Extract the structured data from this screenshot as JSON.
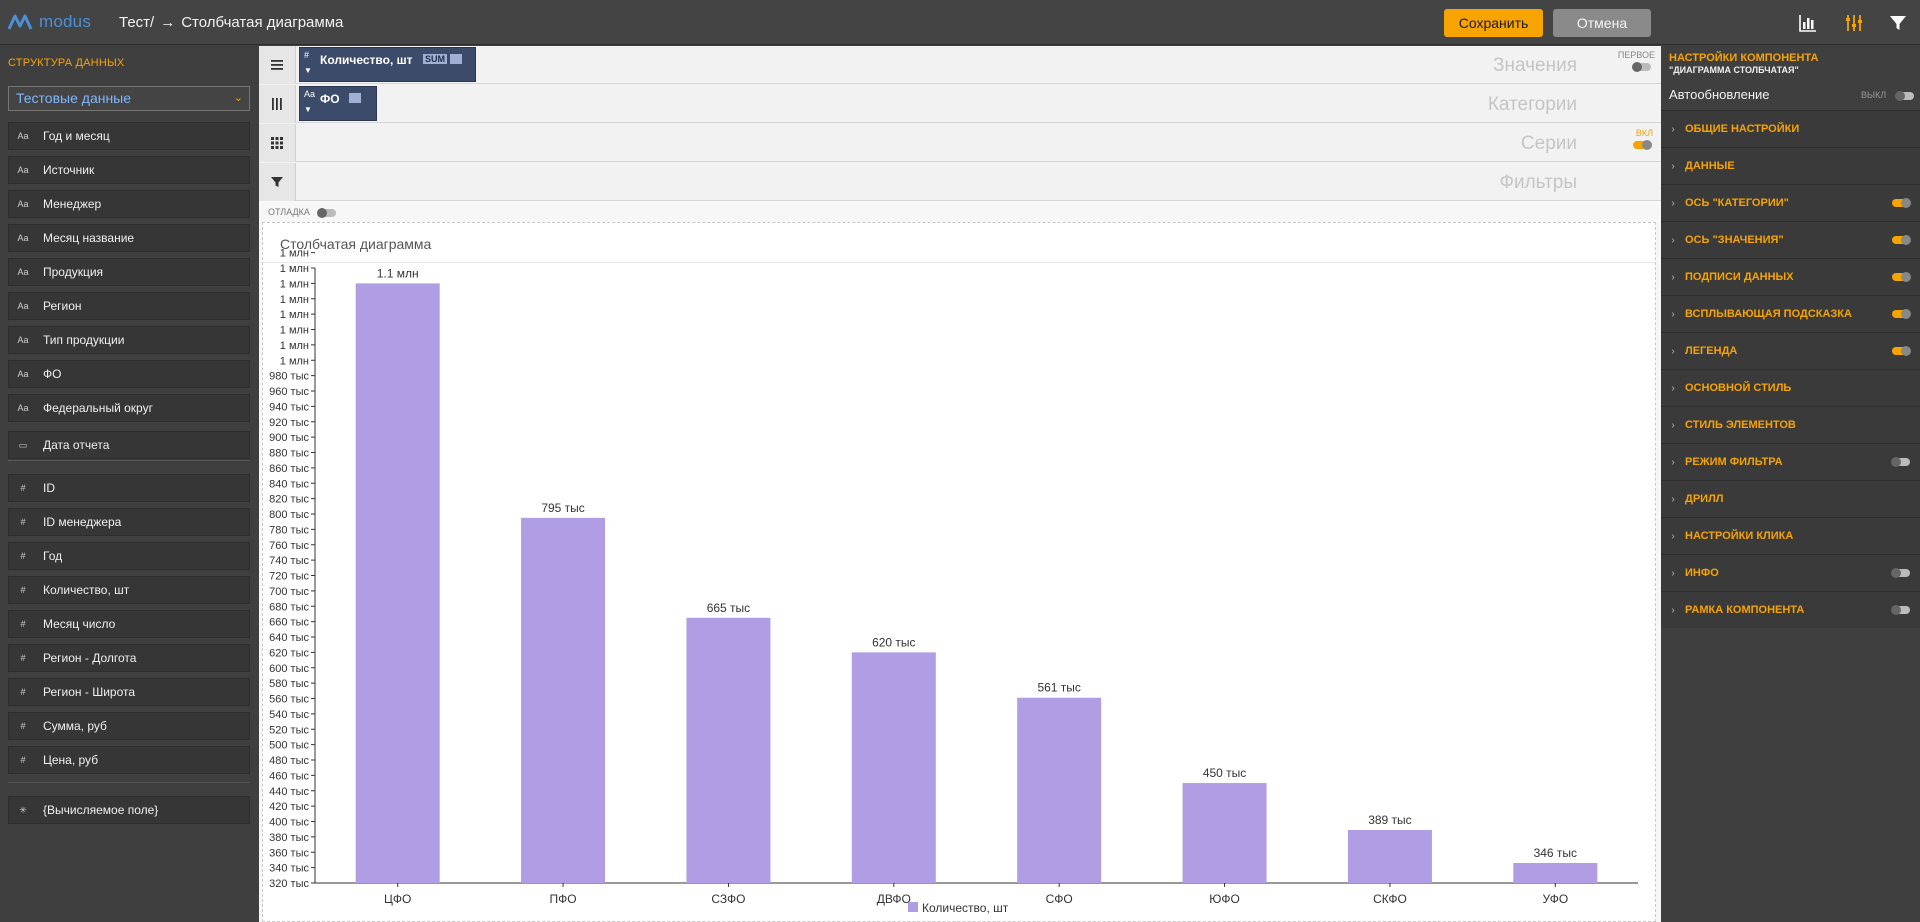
{
  "header": {
    "logo_text": "modus",
    "breadcrumb_parent": "Тест/",
    "breadcrumb_arrow": "→",
    "breadcrumb_current": "Столбчатая диаграмма",
    "save_label": "Сохранить",
    "cancel_label": "Отмена",
    "icons": [
      "chart-bars-icon",
      "sliders-icon",
      "filter-icon"
    ]
  },
  "sidebar": {
    "title": "СТРУКТУРА ДАННЫХ",
    "dataset": "Тестовые данные",
    "text_fields": [
      {
        "type": "Aa",
        "label": "Год и месяц"
      },
      {
        "type": "Aa",
        "label": "Источник"
      },
      {
        "type": "Aa",
        "label": "Менеджер"
      },
      {
        "type": "Aa",
        "label": "Месяц название"
      },
      {
        "type": "Aa",
        "label": "Продукция"
      },
      {
        "type": "Aa",
        "label": "Регион"
      },
      {
        "type": "Aa",
        "label": "Тип продукции"
      },
      {
        "type": "Aa",
        "label": "ФО"
      },
      {
        "type": "Aa",
        "label": "Федеральный округ"
      }
    ],
    "date_fields": [
      {
        "type": "▭",
        "label": "Дата отчета"
      }
    ],
    "number_fields": [
      {
        "type": "#",
        "label": "ID"
      },
      {
        "type": "#",
        "label": "ID менеджера"
      },
      {
        "type": "#",
        "label": "Год"
      },
      {
        "type": "#",
        "label": "Количество, шт"
      },
      {
        "type": "#",
        "label": "Месяц число"
      },
      {
        "type": "#",
        "label": "Регион - Долгота"
      },
      {
        "type": "#",
        "label": "Регион - Широта"
      },
      {
        "type": "#",
        "label": "Сумма, руб"
      },
      {
        "type": "#",
        "label": "Цена, руб"
      }
    ],
    "calc_fields": [
      {
        "type": "✳",
        "label": "{Вычисляемое поле}"
      }
    ]
  },
  "zones": {
    "values": {
      "label": "Значения",
      "tag": "ПЕРВОЕ",
      "chip_type": "#",
      "chip": "Количество, шт",
      "agg": "SUM"
    },
    "categories": {
      "label": "Категории",
      "chip_type": "Aa",
      "chip": "ФО"
    },
    "series": {
      "label": "Серии",
      "tag": "ВКЛ"
    },
    "filters": {
      "label": "Фильтры"
    },
    "debug_label": "ОТЛАДКА"
  },
  "chart": {
    "title": "Столбчатая диаграмма",
    "color": "#b09de3"
  },
  "chart_data": {
    "type": "bar",
    "title": "Столбчатая диаграмма",
    "categories": [
      "ЦФО",
      "ПФО",
      "СЗФО",
      "ДВФО",
      "СФО",
      "ЮФО",
      "СКФО",
      "УФО"
    ],
    "series": [
      {
        "name": "Количество, шт",
        "values": [
          1100000,
          795000,
          665000,
          620000,
          561000,
          450000,
          389000,
          346000
        ]
      }
    ],
    "data_labels": [
      "1.1 млн",
      "795 тыс",
      "665 тыс",
      "620 тыс",
      "561 тыс",
      "450 тыс",
      "389 тыс",
      "346 тыс"
    ],
    "ylim": [
      320000,
      1120000
    ],
    "y_tick_labels": [
      "320 тыс",
      "340 тыс",
      "360 тыс",
      "380 тыс",
      "400 тыс",
      "420 тыс",
      "440 тыс",
      "460 тыс",
      "480 тыс",
      "500 тыс",
      "520 тыс",
      "540 тыс",
      "560 тыс",
      "580 тыс",
      "600 тыс",
      "620 тыс",
      "640 тыс",
      "660 тыс",
      "680 тыс",
      "700 тыс",
      "720 тыс",
      "740 тыс",
      "760 тыс",
      "780 тыс",
      "800 тыс",
      "820 тыс",
      "840 тыс",
      "860 тыс",
      "880 тыс",
      "900 тыс",
      "920 тыс",
      "940 тыс",
      "960 тыс",
      "980 тыс",
      "1 млн",
      "1 млн",
      "1 млн",
      "1 млн",
      "1 млн",
      "1 млн",
      "1 млн",
      "1 млн"
    ],
    "legend": "bottom",
    "grid": false
  },
  "right_panel": {
    "title": "НАСТРОЙКИ КОМПОНЕНТА",
    "subtitle": "\"ДИАГРАММА СТОЛБЧАТАЯ\"",
    "autoupdate_label": "Автообновление",
    "autoupdate_state": "ВЫКЛ",
    "sections": [
      {
        "label": "ОБЩИЕ НАСТРОЙКИ",
        "toggle": null
      },
      {
        "label": "ДАННЫЕ",
        "toggle": null
      },
      {
        "label": "ОСЬ \"КАТЕГОРИИ\"",
        "toggle": "on"
      },
      {
        "label": "ОСЬ \"ЗНАЧЕНИЯ\"",
        "toggle": "on"
      },
      {
        "label": "ПОДПИСИ ДАННЫХ",
        "toggle": "on"
      },
      {
        "label": "ВСПЛЫВАЮЩАЯ ПОДСКАЗКА",
        "toggle": "on"
      },
      {
        "label": "ЛЕГЕНДА",
        "toggle": "on"
      },
      {
        "label": "ОСНОВНОЙ СТИЛЬ",
        "toggle": null
      },
      {
        "label": "СТИЛЬ ЭЛЕМЕНТОВ",
        "toggle": null
      },
      {
        "label": "РЕЖИМ ФИЛЬТРА",
        "toggle": "off"
      },
      {
        "label": "ДРИЛЛ",
        "toggle": null
      },
      {
        "label": "НАСТРОЙКИ КЛИКА",
        "toggle": null
      },
      {
        "label": "ИНФО",
        "toggle": "off"
      },
      {
        "label": "РАМКА КОМПОНЕНТА",
        "toggle": "off"
      }
    ]
  }
}
